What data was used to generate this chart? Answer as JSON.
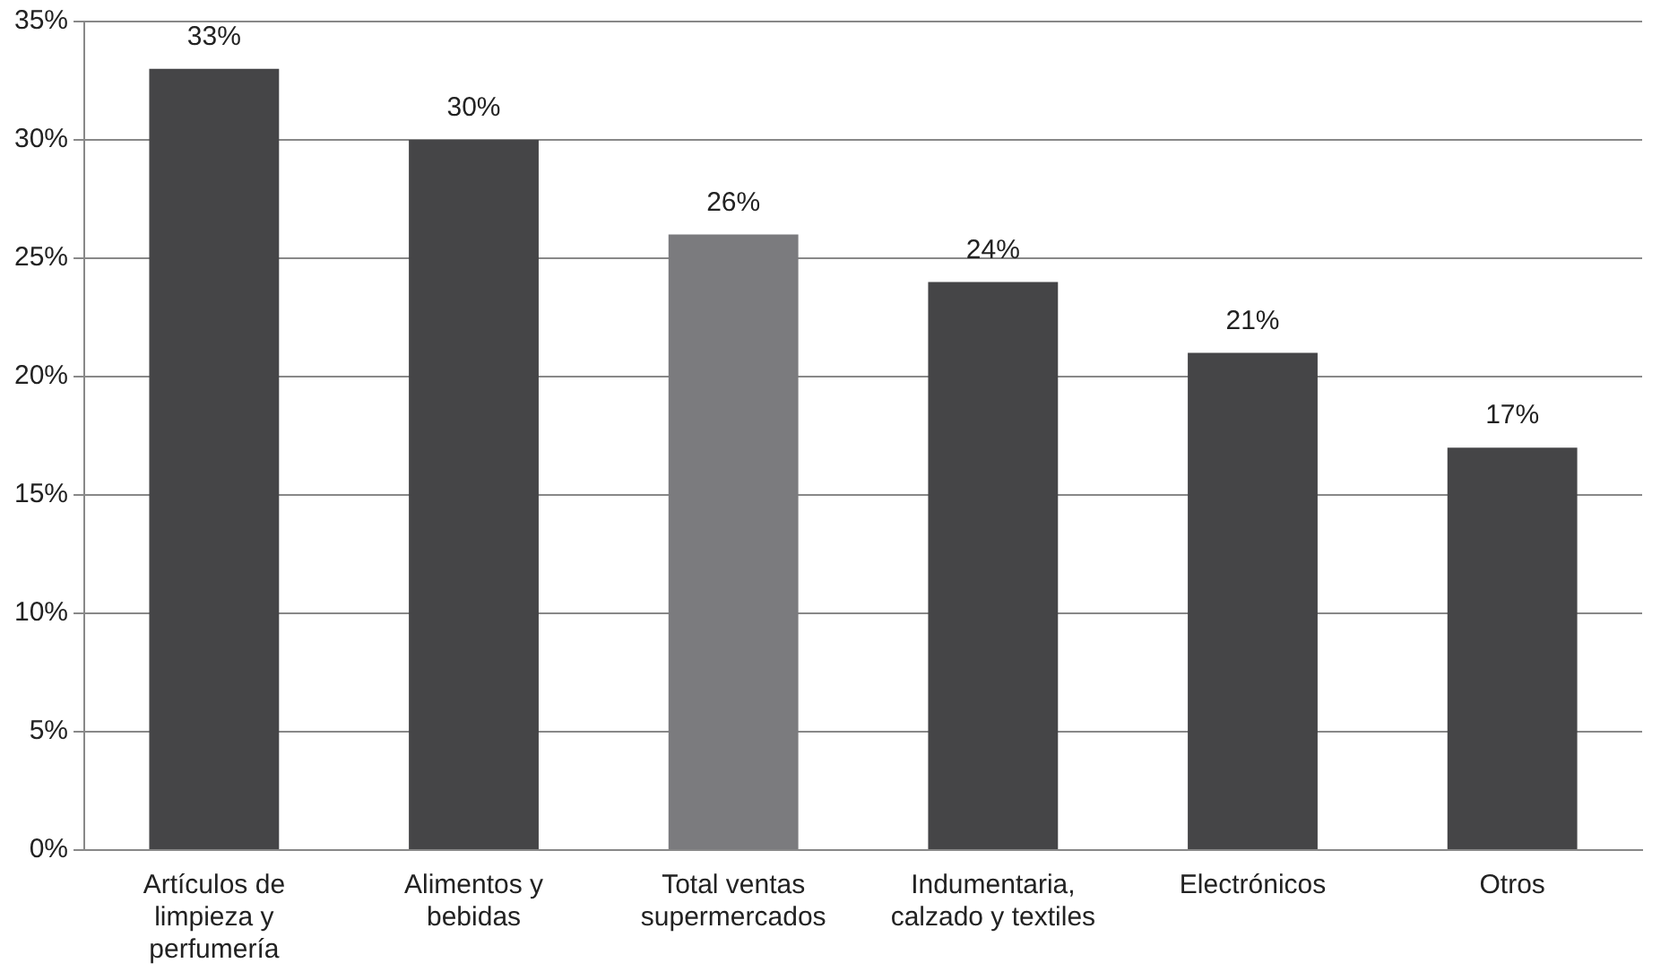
{
  "chart_data": {
    "type": "bar",
    "categories": [
      "Artículos de limpieza y perfumería",
      "Alimentos y bebidas",
      "Total ventas supermercados",
      "Indumentaria, calzado y textiles",
      "Electrónicos",
      "Otros"
    ],
    "values": [
      33,
      30,
      26,
      24,
      21,
      17
    ],
    "colors": [
      "#454547",
      "#454547",
      "#7b7b7e",
      "#454547",
      "#454547",
      "#454547"
    ],
    "value_labels": [
      "33%",
      "30%",
      "26%",
      "24%",
      "21%",
      "17%"
    ],
    "ylim": [
      0,
      35
    ],
    "yticks": [
      {
        "value": 0,
        "label": "0%"
      },
      {
        "value": 5,
        "label": "5%"
      },
      {
        "value": 10,
        "label": "10%"
      },
      {
        "value": 15,
        "label": "15%"
      },
      {
        "value": 20,
        "label": "20%"
      },
      {
        "value": 25,
        "label": "25%"
      },
      {
        "value": 30,
        "label": "30%"
      },
      {
        "value": 35,
        "label": "35%"
      }
    ],
    "grid": "y",
    "legend": false
  }
}
